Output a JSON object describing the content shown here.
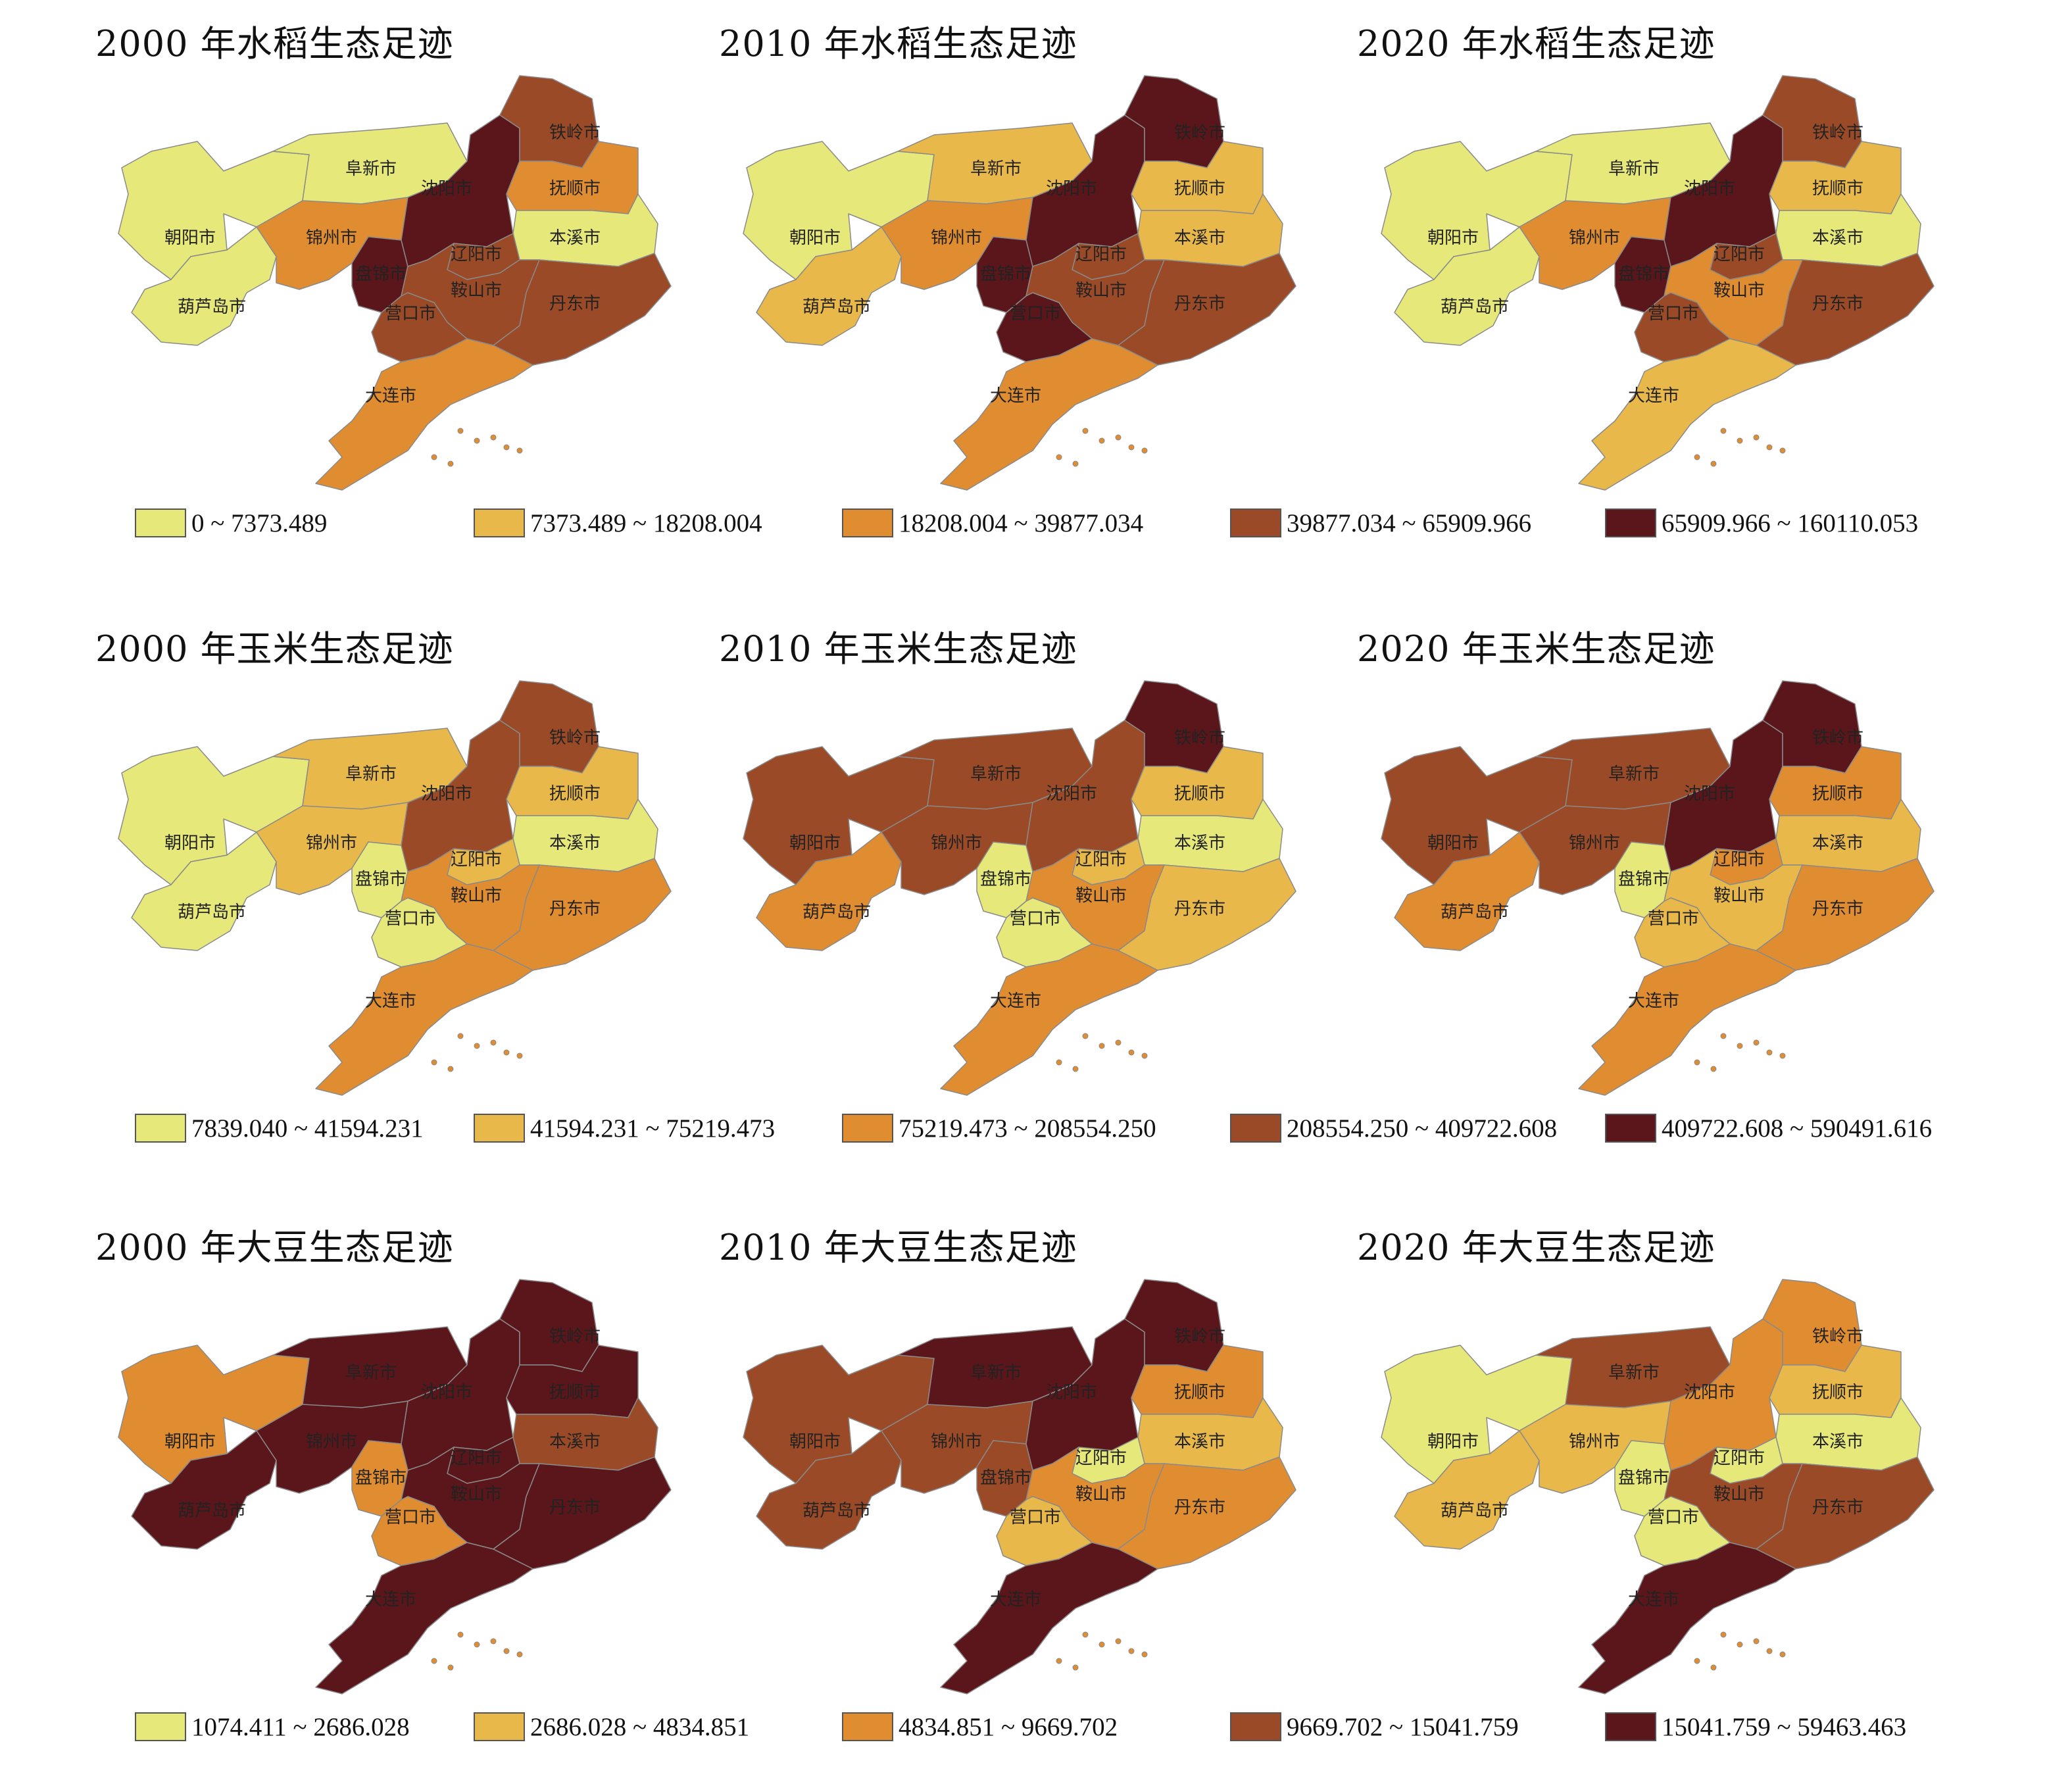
{
  "rows": [
    {
      "id": "rice",
      "legend": [
        {
          "label": "0 ~ 7373.489",
          "color": "#e6e97a"
        },
        {
          "label": "7373.489 ~ 18208.004",
          "color": "#e8b84a"
        },
        {
          "label": "18208.004 ~ 39877.034",
          "color": "#e08c30"
        },
        {
          "label": "39877.034 ~ 65909.966",
          "color": "#9a4a26"
        },
        {
          "label": "65909.966 ~ 160110.053",
          "color": "#5a161a"
        }
      ],
      "maps": [
        {
          "title": "2000 年水稻生态足迹",
          "classes": {
            "朝阳市": 0,
            "葫芦岛市": 0,
            "阜新市": 0,
            "锦州市": 2,
            "盘锦市": 4,
            "沈阳市": 4,
            "铁岭市": 3,
            "抚顺市": 2,
            "本溪市": 0,
            "辽阳市": 3,
            "鞍山市": 3,
            "营口市": 3,
            "丹东市": 3,
            "大连市": 2
          }
        },
        {
          "title": "2010 年水稻生态足迹",
          "classes": {
            "朝阳市": 0,
            "葫芦岛市": 1,
            "阜新市": 1,
            "锦州市": 2,
            "盘锦市": 4,
            "沈阳市": 4,
            "铁岭市": 4,
            "抚顺市": 1,
            "本溪市": 1,
            "辽阳市": 3,
            "鞍山市": 3,
            "营口市": 4,
            "丹东市": 3,
            "大连市": 2
          }
        },
        {
          "title": "2020 年水稻生态足迹",
          "classes": {
            "朝阳市": 0,
            "葫芦岛市": 0,
            "阜新市": 0,
            "锦州市": 2,
            "盘锦市": 4,
            "沈阳市": 4,
            "铁岭市": 3,
            "抚顺市": 1,
            "本溪市": 0,
            "辽阳市": 3,
            "鞍山市": 2,
            "营口市": 3,
            "丹东市": 3,
            "大连市": 1
          }
        }
      ]
    },
    {
      "id": "corn",
      "legend": [
        {
          "label": "7839.040 ~ 41594.231",
          "color": "#e6e97a"
        },
        {
          "label": "41594.231 ~ 75219.473",
          "color": "#e8b84a"
        },
        {
          "label": "75219.473 ~ 208554.250",
          "color": "#e08c30"
        },
        {
          "label": "208554.250 ~ 409722.608",
          "color": "#9a4a26"
        },
        {
          "label": "409722.608 ~ 590491.616",
          "color": "#5a161a"
        }
      ],
      "maps": [
        {
          "title": "2000 年玉米生态足迹",
          "classes": {
            "朝阳市": 0,
            "葫芦岛市": 0,
            "阜新市": 1,
            "锦州市": 1,
            "盘锦市": 0,
            "沈阳市": 3,
            "铁岭市": 3,
            "抚顺市": 1,
            "本溪市": 0,
            "辽阳市": 1,
            "鞍山市": 2,
            "营口市": 0,
            "丹东市": 2,
            "大连市": 2
          }
        },
        {
          "title": "2010 年玉米生态足迹",
          "classes": {
            "朝阳市": 3,
            "葫芦岛市": 2,
            "阜新市": 3,
            "锦州市": 3,
            "盘锦市": 0,
            "沈阳市": 3,
            "铁岭市": 4,
            "抚顺市": 1,
            "本溪市": 0,
            "辽阳市": 1,
            "鞍山市": 2,
            "营口市": 0,
            "丹东市": 1,
            "大连市": 2
          }
        },
        {
          "title": "2020 年玉米生态足迹",
          "classes": {
            "朝阳市": 3,
            "葫芦岛市": 2,
            "阜新市": 3,
            "锦州市": 3,
            "盘锦市": 0,
            "沈阳市": 4,
            "铁岭市": 4,
            "抚顺市": 2,
            "本溪市": 1,
            "辽阳市": 2,
            "鞍山市": 1,
            "营口市": 1,
            "丹东市": 2,
            "大连市": 2
          }
        }
      ]
    },
    {
      "id": "soybean",
      "legend": [
        {
          "label": "1074.411 ~ 2686.028",
          "color": "#e6e97a"
        },
        {
          "label": "2686.028 ~ 4834.851",
          "color": "#e8b84a"
        },
        {
          "label": "4834.851 ~ 9669.702",
          "color": "#e08c30"
        },
        {
          "label": "9669.702 ~ 15041.759",
          "color": "#9a4a26"
        },
        {
          "label": "15041.759 ~ 59463.463",
          "color": "#5a161a"
        }
      ],
      "maps": [
        {
          "title": "2000 年大豆生态足迹",
          "classes": {
            "朝阳市": 2,
            "葫芦岛市": 4,
            "阜新市": 4,
            "锦州市": 4,
            "盘锦市": 2,
            "沈阳市": 4,
            "铁岭市": 4,
            "抚顺市": 4,
            "本溪市": 3,
            "辽阳市": 4,
            "鞍山市": 4,
            "营口市": 2,
            "丹东市": 4,
            "大连市": 4
          }
        },
        {
          "title": "2010 年大豆生态足迹",
          "classes": {
            "朝阳市": 3,
            "葫芦岛市": 3,
            "阜新市": 4,
            "锦州市": 3,
            "盘锦市": 3,
            "沈阳市": 4,
            "铁岭市": 4,
            "抚顺市": 2,
            "本溪市": 1,
            "辽阳市": 0,
            "鞍山市": 2,
            "营口市": 1,
            "丹东市": 2,
            "大连市": 4
          }
        },
        {
          "title": "2020 年大豆生态足迹",
          "classes": {
            "朝阳市": 0,
            "葫芦岛市": 1,
            "阜新市": 3,
            "锦州市": 1,
            "盘锦市": 0,
            "沈阳市": 2,
            "铁岭市": 2,
            "抚顺市": 1,
            "本溪市": 0,
            "辽阳市": 0,
            "鞍山市": 3,
            "营口市": 0,
            "丹东市": 3,
            "大连市": 4
          }
        }
      ]
    }
  ]
}
